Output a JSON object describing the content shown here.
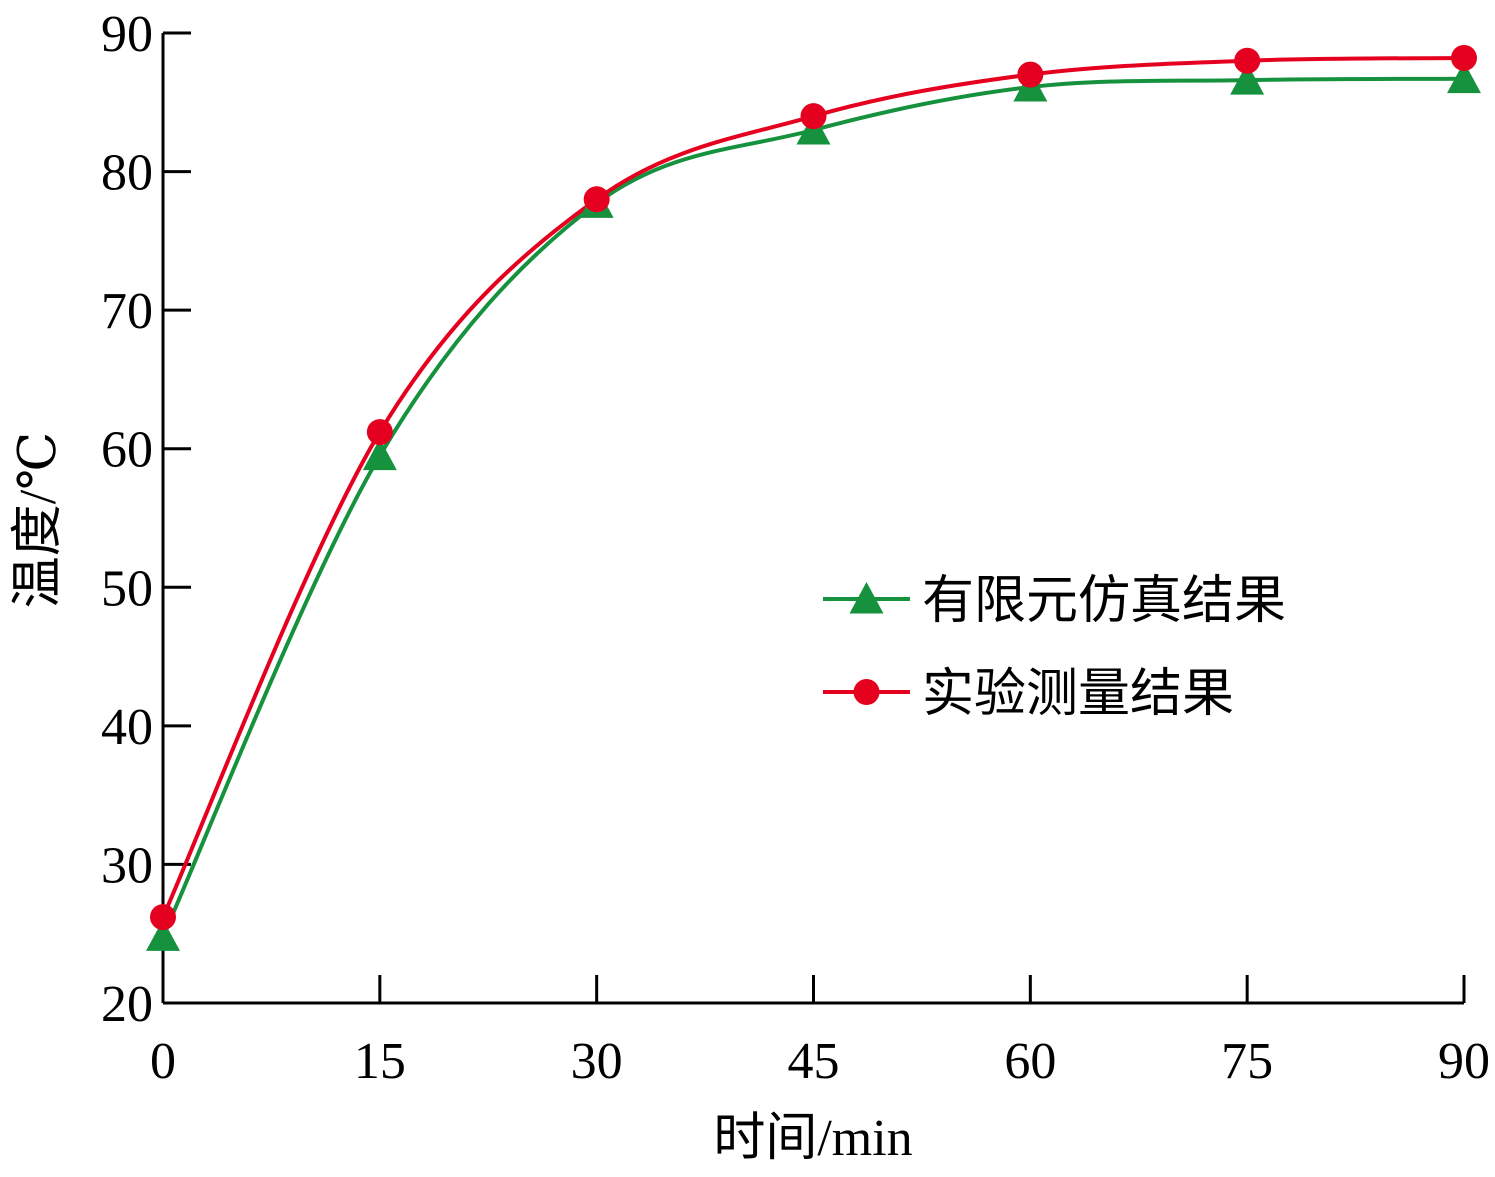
{
  "chart_data": {
    "type": "line",
    "title": "",
    "xlabel": "时间/min",
    "ylabel": "温度/℃",
    "x": [
      0,
      15,
      30,
      45,
      60,
      75,
      90
    ],
    "xlim": [
      0,
      90
    ],
    "ylim": [
      20,
      90
    ],
    "xticks": [
      0,
      15,
      30,
      45,
      60,
      75,
      90
    ],
    "yticks": [
      20,
      30,
      40,
      50,
      60,
      70,
      80,
      90
    ],
    "grid": false,
    "legend": "center-right",
    "series": [
      {
        "name": "有限元仿真结果",
        "marker": "triangle",
        "color": "#16923f",
        "values": [
          24.8,
          59.5,
          77.7,
          83.0,
          86.1,
          86.6,
          86.7
        ]
      },
      {
        "name": "实验测量结果",
        "marker": "circle",
        "color": "#e5001f",
        "values": [
          26.2,
          61.2,
          78.0,
          84.0,
          87.0,
          88.0,
          88.2
        ]
      }
    ]
  }
}
